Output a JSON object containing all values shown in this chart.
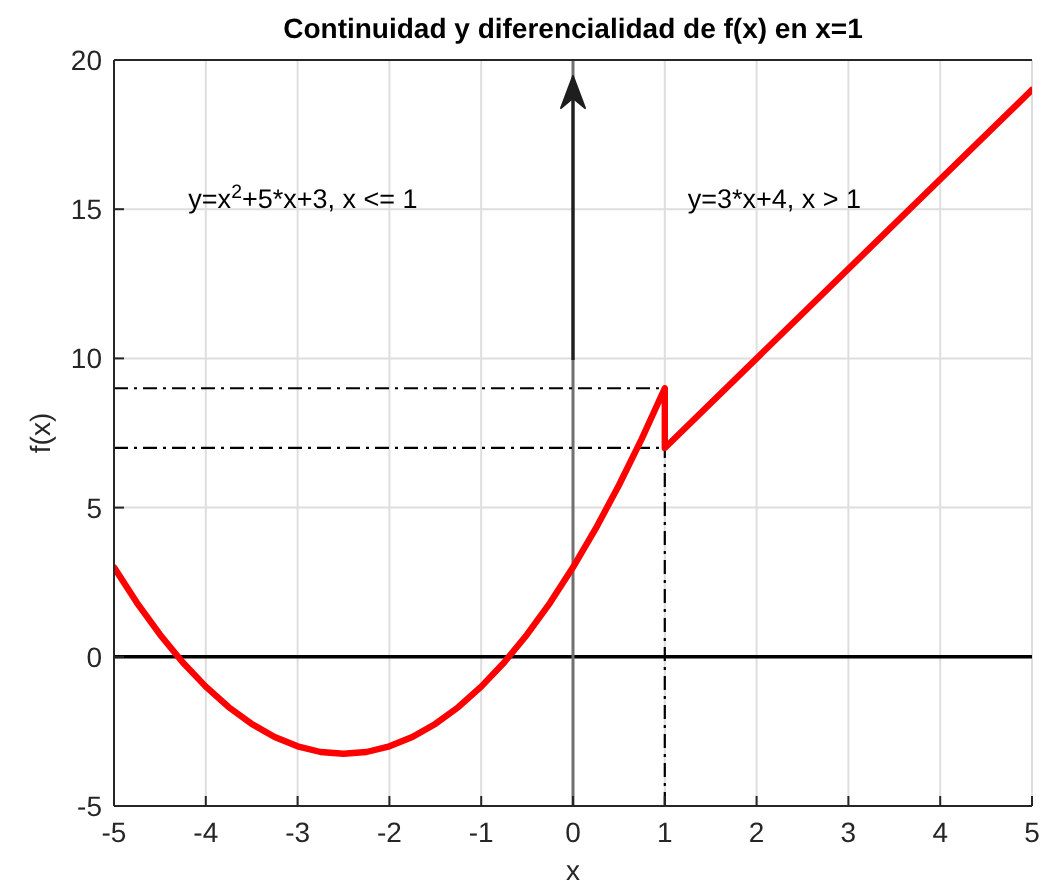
{
  "chart_data": {
    "type": "line",
    "title": "Continuidad y diferencialidad de f(x) en x=1",
    "xlabel": "x",
    "ylabel": "f(x)",
    "annotations": [
      "y=x$^{2}$+5*x+3, x <= 1",
      "y=3*x+4, x > 1"
    ],
    "xlim": [
      -5,
      5
    ],
    "ylim": [
      -5,
      20
    ],
    "xticks": [
      -5,
      -4,
      -3,
      -2,
      -1,
      0,
      1,
      2,
      3,
      4,
      5
    ],
    "yticks": [
      -5,
      0,
      5,
      10,
      15,
      20
    ],
    "grid": true,
    "series": [
      {
        "color": "#000000",
        "line_style": "dashdot",
        "x": [
          -5,
          1
        ],
        "values": [
          9,
          9
        ]
      },
      {
        "color": "#000000",
        "line_style": "dashdot",
        "x": [
          -5,
          1
        ],
        "values": [
          7,
          7
        ]
      },
      {
        "color": "#000000",
        "line_style": "dashdot",
        "x": [
          1,
          1
        ],
        "values": [
          -5,
          7
        ]
      },
      {
        "color": "#ff0000",
        "x": [
          -5,
          -4.75,
          -4.5,
          -4.25,
          -4,
          -3.75,
          -3.5,
          -3.25,
          -3,
          -2.75,
          -2.5,
          -2.25,
          -2,
          -1.75,
          -1.5,
          -1.25,
          -1,
          -0.75,
          -0.5,
          -0.25,
          0,
          0.25,
          0.5,
          0.75,
          1,
          1,
          5
        ],
        "values": [
          3,
          1.81,
          0.75,
          -0.19,
          -1,
          -1.69,
          -2.25,
          -2.69,
          -3,
          -3.19,
          -3.25,
          -3.19,
          -3,
          -2.69,
          -2.25,
          -1.69,
          -1,
          -0.19,
          0.75,
          1.81,
          3,
          4.31,
          5.75,
          7.31,
          9,
          7,
          19
        ]
      }
    ],
    "ref_lines": [
      {
        "axis": "y",
        "value": 0,
        "color": "#000000"
      },
      {
        "axis": "x",
        "value": 0,
        "color": "#707070"
      }
    ]
  }
}
